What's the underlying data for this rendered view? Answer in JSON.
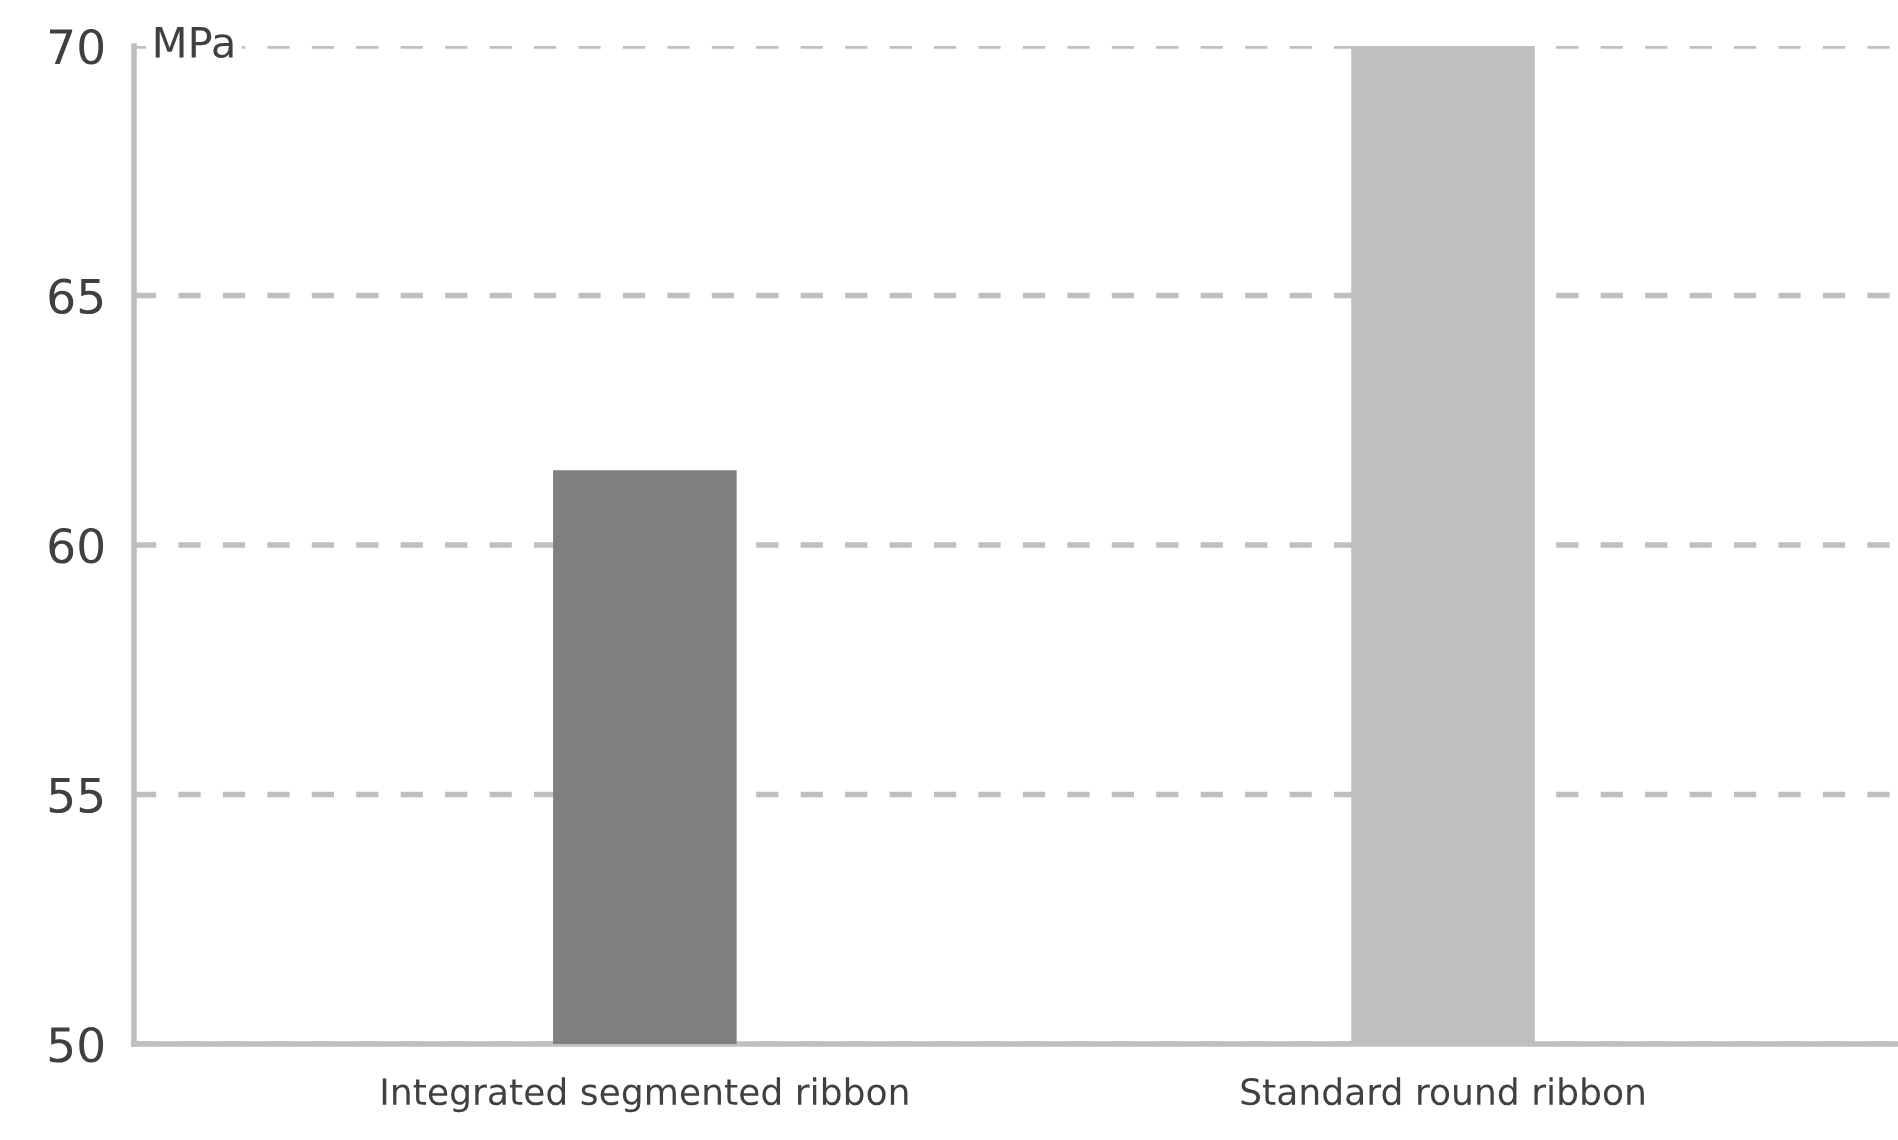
{
  "chart_data": {
    "type": "bar",
    "ylabel": "MPa",
    "categories": [
      "Integrated segmented ribbon",
      "Standard round ribbon"
    ],
    "values": [
      61.5,
      70
    ],
    "colors": [
      "#7f7f7f",
      "#bfbfbf"
    ],
    "ylim": [
      50,
      70
    ],
    "yticks": [
      50,
      55,
      60,
      65,
      70
    ],
    "grid": "y",
    "line_style": "dashed"
  }
}
